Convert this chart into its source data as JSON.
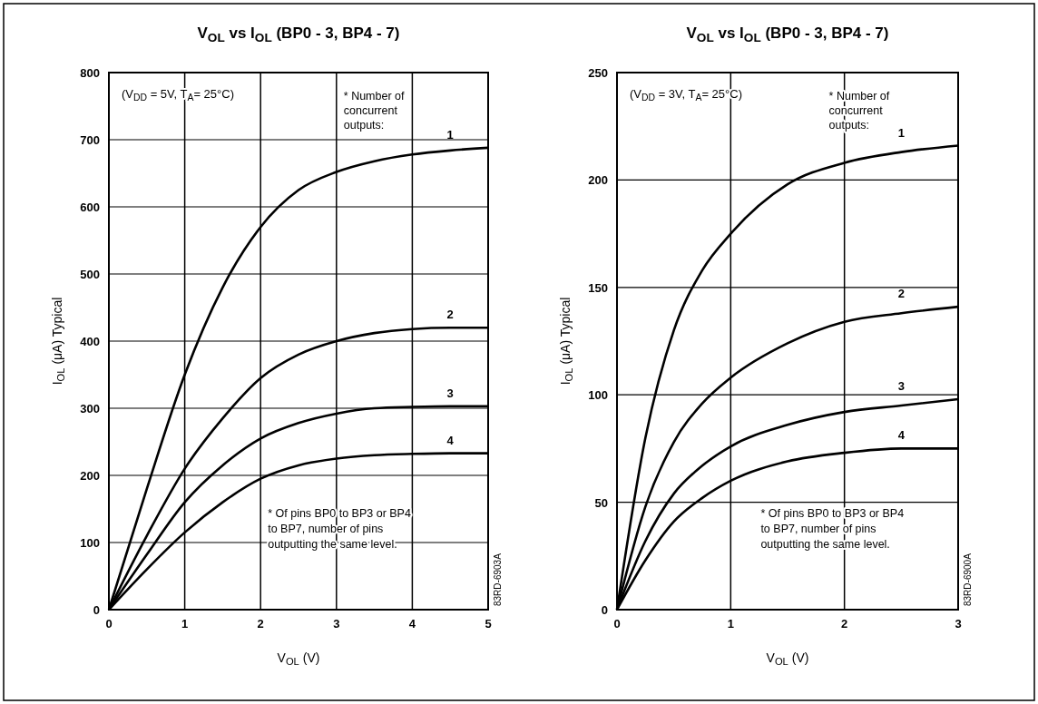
{
  "chart_data": [
    {
      "type": "line",
      "title": "V$_{OL}$ vs I$_{OL}$ (BP0 - 3, BP4 - 7)",
      "xlabel": "V$_{OL}$ (V)",
      "ylabel": "I$_{OL}$ (μA) Typical",
      "xlim": [
        0,
        5
      ],
      "ylim": [
        0,
        800
      ],
      "xticks": [
        0,
        1,
        2,
        3,
        4,
        5
      ],
      "yticks": [
        0,
        100,
        200,
        300,
        400,
        500,
        600,
        700,
        800
      ],
      "grid": true,
      "marker": "none",
      "line_style": "solid",
      "annotations": [
        "(V$_{DD}$ = 5V, T$_{A}$= 25°C)",
        "* Number of concurrent outputs:",
        "* Of pins BP0 to BP3 or BP4 to BP7, number of pins outputting the same level.",
        "83RD-6903A"
      ],
      "series": [
        {
          "name": "1",
          "color": "#000000",
          "x": [
            0,
            0.5,
            1,
            1.5,
            2,
            2.5,
            3,
            3.5,
            4,
            4.5,
            5
          ],
          "values": [
            0,
            180,
            350,
            480,
            570,
            625,
            652,
            668,
            678,
            684,
            688
          ]
        },
        {
          "name": "2",
          "color": "#000000",
          "x": [
            0,
            0.5,
            1,
            1.5,
            2,
            2.5,
            3,
            3.5,
            4,
            4.5,
            5
          ],
          "values": [
            0,
            110,
            210,
            285,
            345,
            380,
            400,
            412,
            418,
            420,
            420
          ]
        },
        {
          "name": "3",
          "color": "#000000",
          "x": [
            0,
            0.5,
            1,
            1.5,
            2,
            2.5,
            3,
            3.5,
            4,
            4.5,
            5
          ],
          "values": [
            0,
            82,
            160,
            215,
            255,
            278,
            292,
            300,
            302,
            303,
            303
          ]
        },
        {
          "name": "4",
          "color": "#000000",
          "x": [
            0,
            0.5,
            1,
            1.5,
            2,
            2.5,
            3,
            3.5,
            4,
            4.5,
            5
          ],
          "values": [
            0,
            60,
            115,
            160,
            195,
            215,
            225,
            230,
            232,
            233,
            233
          ]
        }
      ]
    },
    {
      "type": "line",
      "title": "V$_{OL}$ vs I$_{OL}$ (BP0 - 3, BP4 - 7)",
      "xlabel": "V$_{OL}$ (V)",
      "ylabel": "I$_{OL}$ (μA) Typical",
      "xlim": [
        0,
        3
      ],
      "ylim": [
        0,
        250
      ],
      "xticks": [
        0,
        1,
        2,
        3
      ],
      "yticks": [
        0,
        50,
        100,
        150,
        200,
        250
      ],
      "grid": true,
      "marker": "none",
      "line_style": "solid",
      "annotations": [
        "(V$_{DD}$ = 3V, T$_{A}$= 25°C)",
        "* Number of concurrent outputs:",
        "* Of pins BP0 to BP3 or BP4 to BP7, number of pins outputting the same level.",
        "83RD-6900A"
      ],
      "series": [
        {
          "name": "1",
          "color": "#000000",
          "x": [
            0,
            0.25,
            0.5,
            0.75,
            1,
            1.5,
            2,
            2.5,
            3
          ],
          "values": [
            0,
            80,
            130,
            158,
            175,
            198,
            208,
            213,
            216
          ]
        },
        {
          "name": "2",
          "color": "#000000",
          "x": [
            0,
            0.25,
            0.5,
            0.75,
            1,
            1.5,
            2,
            2.5,
            3
          ],
          "values": [
            0,
            48,
            78,
            96,
            108,
            124,
            134,
            138,
            141
          ]
        },
        {
          "name": "3",
          "color": "#000000",
          "x": [
            0,
            0.25,
            0.5,
            0.75,
            1,
            1.5,
            2,
            2.5,
            3
          ],
          "values": [
            0,
            32,
            54,
            67,
            76,
            86,
            92,
            95,
            98
          ]
        },
        {
          "name": "4",
          "color": "#000000",
          "x": [
            0,
            0.25,
            0.5,
            0.75,
            1,
            1.5,
            2,
            2.5,
            3
          ],
          "values": [
            0,
            23,
            41,
            52,
            60,
            69,
            73,
            75,
            75
          ]
        }
      ]
    }
  ]
}
